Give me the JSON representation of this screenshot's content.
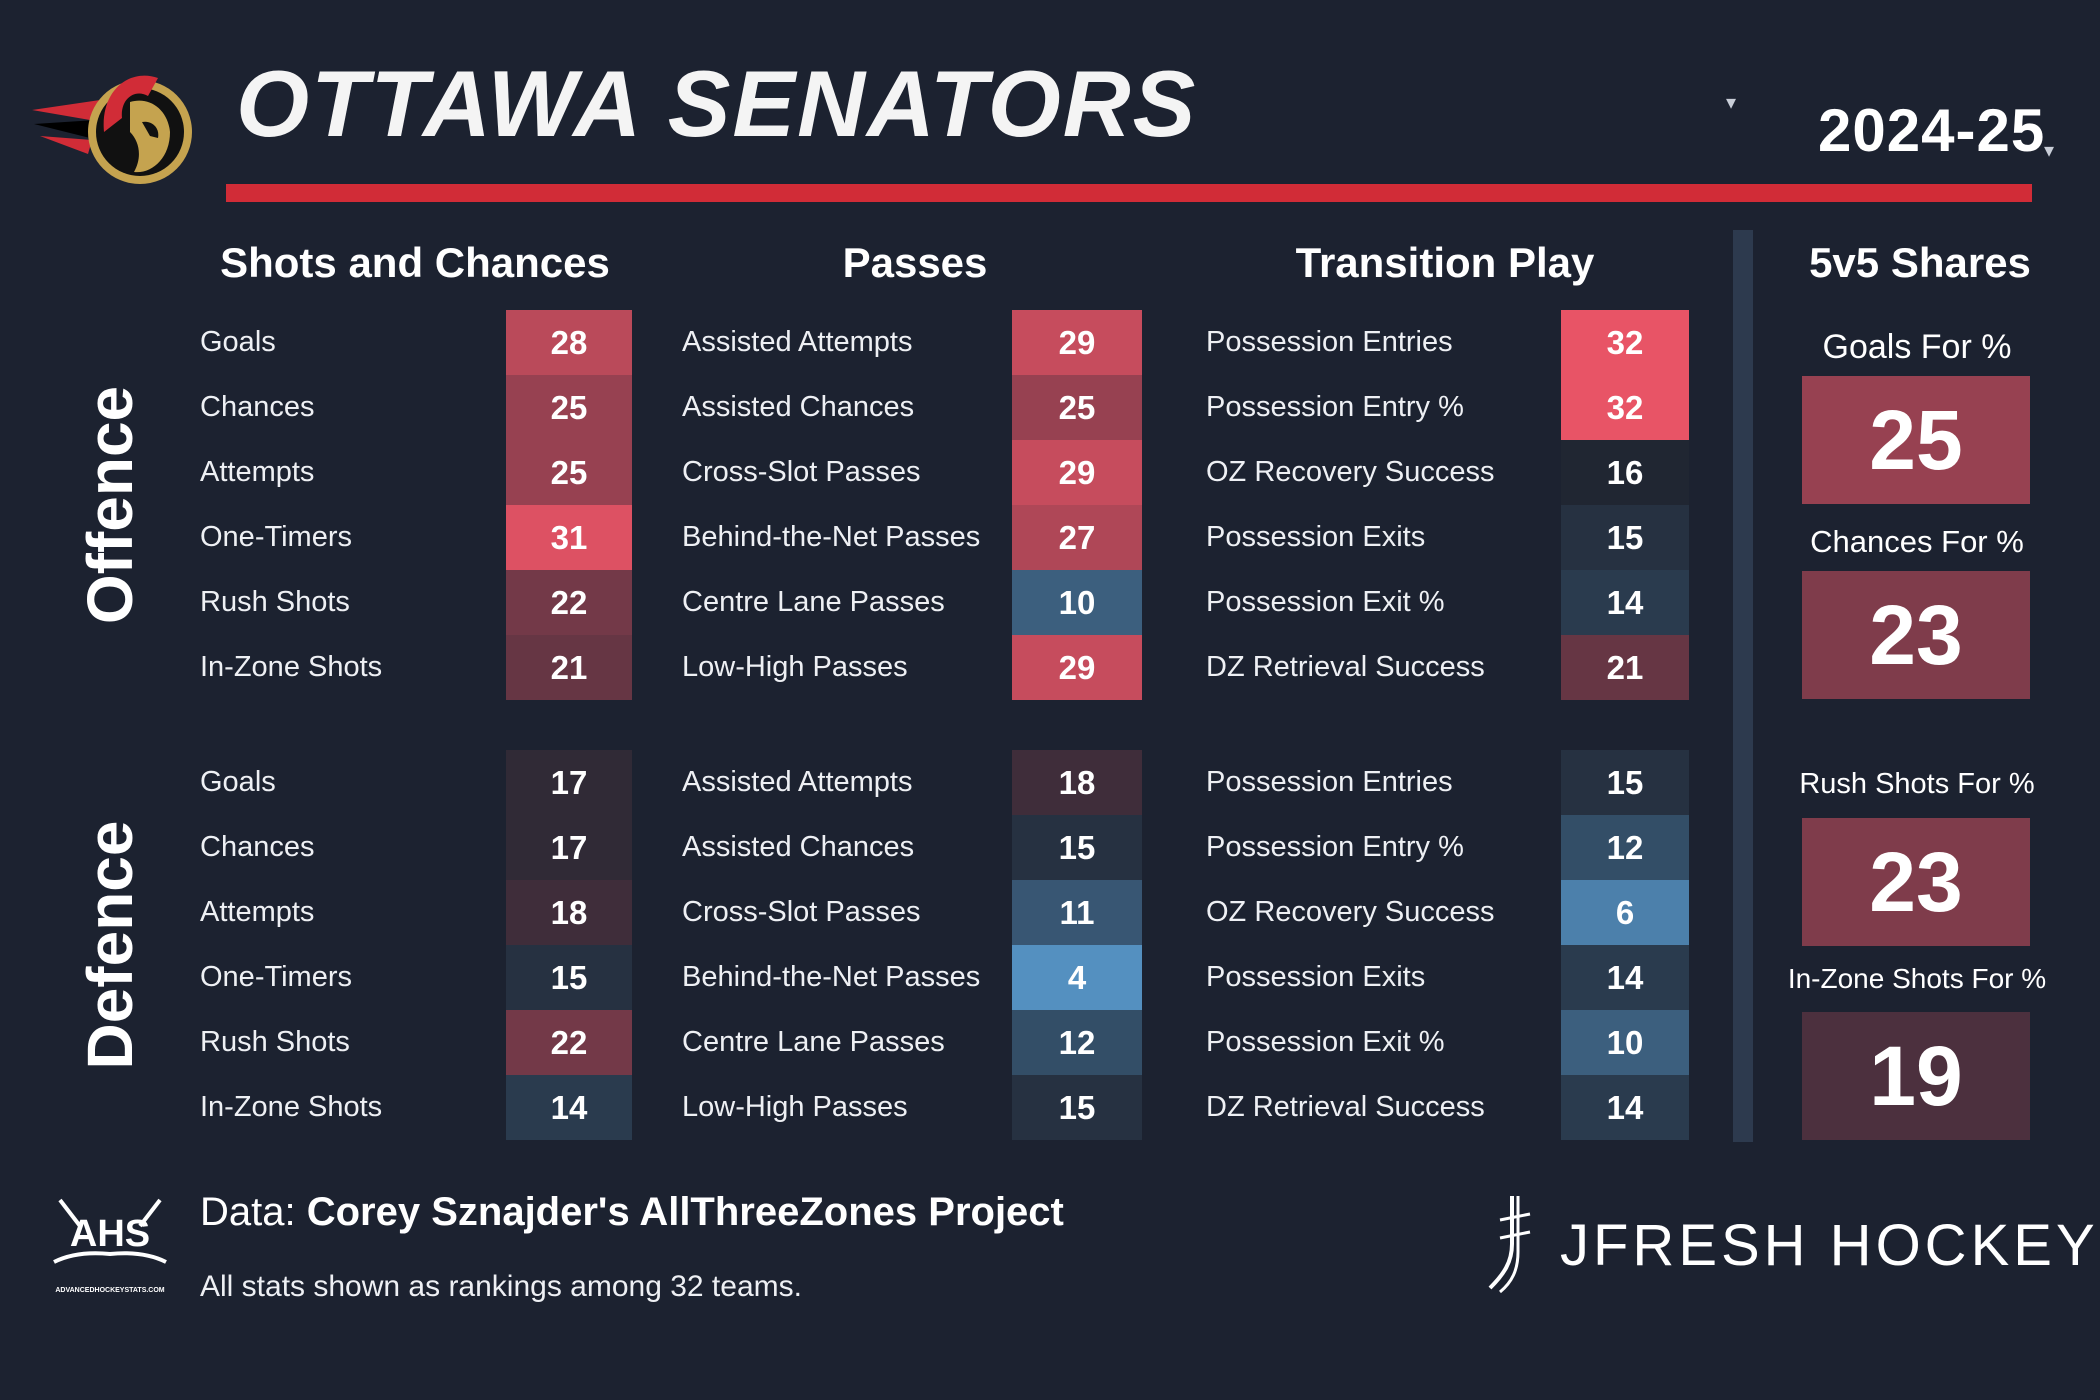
{
  "header": {
    "team_name": "OTTAWA SENATORS",
    "season": "2024-25",
    "caret_glyph": "▾"
  },
  "colors": {
    "background": "#1c2230",
    "accent_red": "#d12c37",
    "divider": "#2d3a4e"
  },
  "sections": {
    "shots_title": "Shots and Chances",
    "passes_title": "Passes",
    "transition_title": "Transition Play",
    "shares_title": "5v5 Shares",
    "offence_label": "Offence",
    "defence_label": "Defence"
  },
  "offence": {
    "shots": [
      {
        "label": "Goals",
        "value": "28"
      },
      {
        "label": "Chances",
        "value": "25"
      },
      {
        "label": "Attempts",
        "value": "25"
      },
      {
        "label": "One-Timers",
        "value": "31"
      },
      {
        "label": "Rush Shots",
        "value": "22"
      },
      {
        "label": "In-Zone Shots",
        "value": "21"
      }
    ],
    "passes": [
      {
        "label": "Assisted Attempts",
        "value": "29"
      },
      {
        "label": "Assisted Chances",
        "value": "25"
      },
      {
        "label": "Cross-Slot Passes",
        "value": "29"
      },
      {
        "label": "Behind-the-Net Passes",
        "value": "27"
      },
      {
        "label": "Centre Lane Passes",
        "value": "10"
      },
      {
        "label": "Low-High Passes",
        "value": "29"
      }
    ],
    "transition": [
      {
        "label": "Possession Entries",
        "value": "32"
      },
      {
        "label": "Possession Entry %",
        "value": "32"
      },
      {
        "label": "OZ Recovery Success",
        "value": "16"
      },
      {
        "label": "Possession Exits",
        "value": "15"
      },
      {
        "label": "Possession Exit %",
        "value": "14"
      },
      {
        "label": "DZ Retrieval Success",
        "value": "21"
      }
    ]
  },
  "defence": {
    "shots": [
      {
        "label": "Goals",
        "value": "17"
      },
      {
        "label": "Chances",
        "value": "17"
      },
      {
        "label": "Attempts",
        "value": "18"
      },
      {
        "label": "One-Timers",
        "value": "15"
      },
      {
        "label": "Rush Shots",
        "value": "22"
      },
      {
        "label": "In-Zone Shots",
        "value": "14"
      }
    ],
    "passes": [
      {
        "label": "Assisted Attempts",
        "value": "18"
      },
      {
        "label": "Assisted Chances",
        "value": "15"
      },
      {
        "label": "Cross-Slot Passes",
        "value": "11"
      },
      {
        "label": "Behind-the-Net Passes",
        "value": "4"
      },
      {
        "label": "Centre Lane Passes",
        "value": "12"
      },
      {
        "label": "Low-High Passes",
        "value": "15"
      }
    ],
    "transition": [
      {
        "label": "Possession Entries",
        "value": "15"
      },
      {
        "label": "Possession Entry %",
        "value": "12"
      },
      {
        "label": "OZ Recovery Success",
        "value": "6"
      },
      {
        "label": "Possession Exits",
        "value": "14"
      },
      {
        "label": "Possession Exit %",
        "value": "10"
      },
      {
        "label": "DZ Retrieval Success",
        "value": "14"
      }
    ]
  },
  "shares": [
    {
      "label": "Goals For %",
      "value": "25"
    },
    {
      "label": "Chances For %",
      "value": "23"
    },
    {
      "label": "Rush Shots For %",
      "value": "23"
    },
    {
      "label": "In-Zone Shots For %",
      "value": "19"
    }
  ],
  "footer": {
    "data_prefix": "Data: ",
    "data_source": "Corey Sznajder's AllThreeZones Project",
    "note": "All stats shown as rankings among 32 teams.",
    "ahs_logo_text": "AHS",
    "ahs_logo_url": "ADVANCEDHOCKEYSTATS.COM",
    "brand": "JFRESH HOCKEY"
  }
}
